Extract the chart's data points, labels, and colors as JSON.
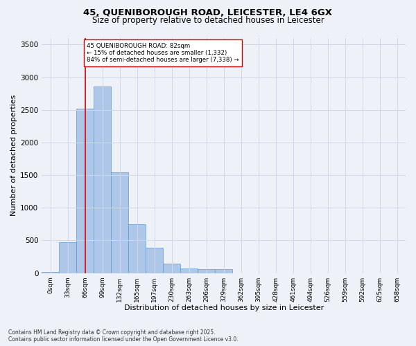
{
  "title_line1": "45, QUENIBOROUGH ROAD, LEICESTER, LE4 6GX",
  "title_line2": "Size of property relative to detached houses in Leicester",
  "xlabel": "Distribution of detached houses by size in Leicester",
  "ylabel": "Number of detached properties",
  "footer_line1": "Contains HM Land Registry data © Crown copyright and database right 2025.",
  "footer_line2": "Contains public sector information licensed under the Open Government Licence v3.0.",
  "bin_labels": [
    "0sqm",
    "33sqm",
    "66sqm",
    "99sqm",
    "132sqm",
    "165sqm",
    "197sqm",
    "230sqm",
    "263sqm",
    "296sqm",
    "329sqm",
    "362sqm",
    "395sqm",
    "428sqm",
    "461sqm",
    "494sqm",
    "526sqm",
    "559sqm",
    "592sqm",
    "625sqm",
    "658sqm"
  ],
  "bar_values": [
    20,
    470,
    2520,
    2860,
    1540,
    750,
    390,
    140,
    70,
    55,
    55,
    0,
    0,
    0,
    0,
    0,
    0,
    0,
    0,
    0,
    0
  ],
  "bar_color": "#aec6e8",
  "bar_edge_color": "#5b9bd5",
  "grid_color": "#d0d8e8",
  "background_color": "#eef2f8",
  "annotation_text": "45 QUENIBOROUGH ROAD: 82sqm\n← 15% of detached houses are smaller (1,332)\n84% of semi-detached houses are larger (7,338) →",
  "vline_x_bin": 2,
  "vline_color": "#cc0000",
  "annotation_box_edge_color": "#cc0000",
  "annotation_box_face_color": "#ffffff",
  "ylim": [
    0,
    3600
  ],
  "yticks": [
    0,
    500,
    1000,
    1500,
    2000,
    2500,
    3000,
    3500
  ]
}
